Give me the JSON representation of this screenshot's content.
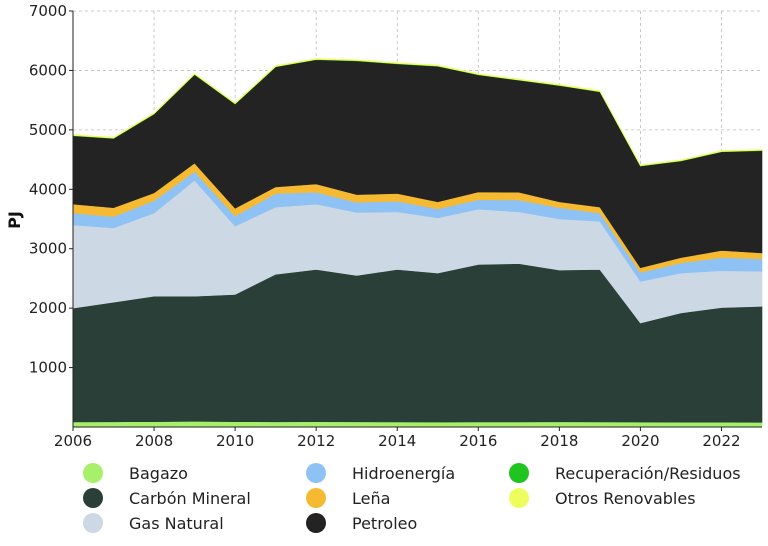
{
  "chart_data": {
    "type": "area",
    "stacked": true,
    "title": "",
    "xlabel": "",
    "ylabel": "PJ",
    "x": [
      2006,
      2007,
      2008,
      2009,
      2010,
      2011,
      2012,
      2013,
      2014,
      2015,
      2016,
      2017,
      2018,
      2019,
      2020,
      2021,
      2022,
      2023
    ],
    "xlim": [
      2006,
      2023
    ],
    "ylim": [
      0,
      7000
    ],
    "xticks": [
      "2006",
      "2008",
      "2010",
      "2012",
      "2014",
      "2016",
      "2018",
      "2020",
      "2022"
    ],
    "yticks": [
      "1000",
      "2000",
      "3000",
      "4000",
      "5000",
      "6000",
      "7000"
    ],
    "grid": true,
    "legend_position": "bottom",
    "series": [
      {
        "name": "Bagazo",
        "color": "#a6f06a",
        "values": [
          85,
          88,
          90,
          95,
          90,
          88,
          90,
          87,
          85,
          83,
          85,
          85,
          87,
          85,
          83,
          80,
          80,
          78
        ]
      },
      {
        "name": "Carbón Mineral",
        "color": "#2a3f37",
        "values": [
          1915,
          2012,
          2110,
          2105,
          2140,
          2482,
          2560,
          2463,
          2565,
          2507,
          2650,
          2665,
          2553,
          2565,
          1667,
          1840,
          1930,
          1952
        ]
      },
      {
        "name": "Gas Natural",
        "color": "#cdd8e5",
        "values": [
          1400,
          1250,
          1400,
          1950,
          1150,
          1130,
          1100,
          1060,
          970,
          930,
          930,
          870,
          860,
          810,
          700,
          670,
          620,
          590
        ]
      },
      {
        "name": "Hidroenergía",
        "color": "#8fc2f4",
        "values": [
          200,
          190,
          210,
          150,
          170,
          230,
          200,
          170,
          180,
          150,
          160,
          200,
          190,
          140,
          150,
          170,
          220,
          210
        ]
      },
      {
        "name": "Leña",
        "color": "#f6b932",
        "values": [
          150,
          150,
          130,
          140,
          130,
          110,
          140,
          130,
          130,
          120,
          130,
          130,
          100,
          100,
          80,
          90,
          120,
          100
        ]
      },
      {
        "name": "Petroleo",
        "color": "#232323",
        "values": [
          1150,
          1165,
          1325,
          1490,
          1755,
          2020,
          2090,
          2250,
          2180,
          2280,
          1970,
          1885,
          1955,
          1940,
          1710,
          1625,
          1660,
          1720
        ]
      },
      {
        "name": "Recuperación/Residuos",
        "color": "#1fc41f",
        "values": [
          5,
          5,
          5,
          5,
          5,
          5,
          5,
          5,
          5,
          5,
          5,
          5,
          5,
          5,
          5,
          5,
          5,
          5
        ]
      },
      {
        "name": "Otros Renovables",
        "color": "#eefc5e",
        "values": [
          15,
          15,
          15,
          15,
          15,
          15,
          15,
          15,
          15,
          15,
          15,
          15,
          15,
          15,
          15,
          15,
          15,
          15
        ]
      }
    ]
  }
}
